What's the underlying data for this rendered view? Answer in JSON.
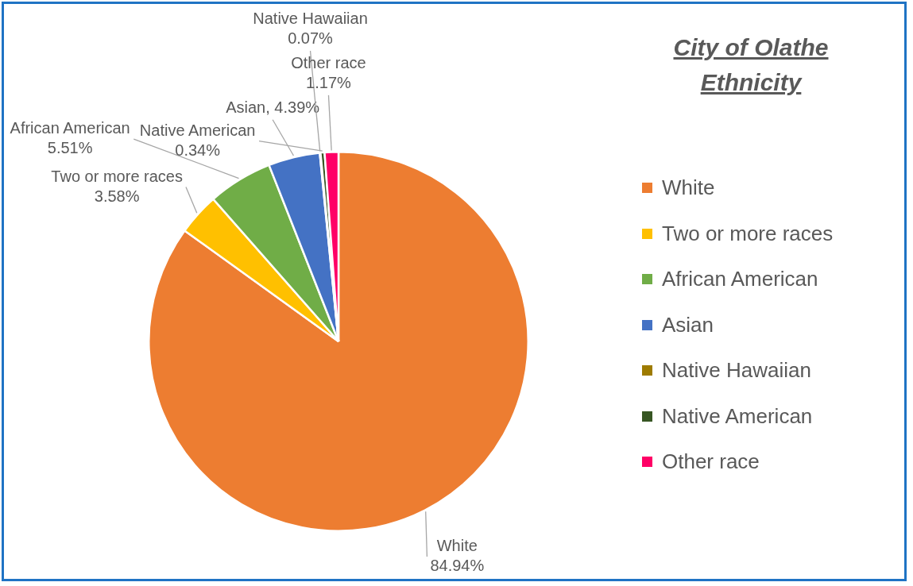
{
  "chart_data": {
    "type": "pie",
    "title": "City of Olathe Ethnicity",
    "categories": [
      "White",
      "Two or more races",
      "African American",
      "Asian",
      "Native Hawaiian",
      "Native American",
      "Other race"
    ],
    "values": [
      84.94,
      3.58,
      5.51,
      4.39,
      0.07,
      0.34,
      1.17
    ],
    "colors": [
      "#ed7d31",
      "#ffc000",
      "#70ad47",
      "#4472c4",
      "#9e7b00",
      "#375623",
      "#ff0066"
    ],
    "value_labels": [
      "White\n84.94%",
      "Two or more races\n3.58%",
      "African American\n5.51%",
      "Asian, 4.39%",
      "Native Hawaiian\n0.07%",
      "Native American\n0.34%",
      "Other race\n1.17%"
    ],
    "legend": "right"
  }
}
